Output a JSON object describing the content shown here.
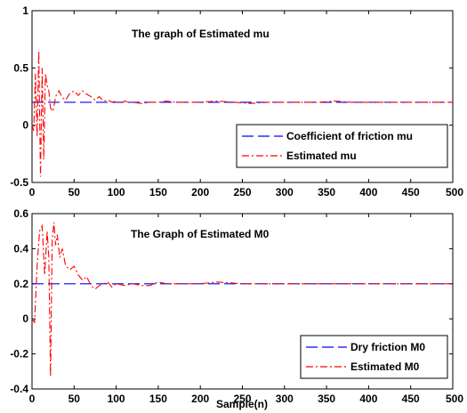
{
  "chart_data": [
    {
      "type": "line",
      "title": "The graph of Estimated mu",
      "xlabel": "",
      "ylabel": "",
      "xlim": [
        0,
        500
      ],
      "ylim": [
        -0.5,
        1
      ],
      "xticks": [
        0,
        50,
        100,
        150,
        200,
        250,
        300,
        350,
        400,
        450,
        500
      ],
      "yticks": [
        -0.5,
        0,
        0.5,
        1
      ],
      "ytick_labels": [
        "-0.5",
        "0",
        "0.5",
        "1"
      ],
      "legend_position": "bottom-right",
      "series": [
        {
          "name": "Coefficient of friction mu",
          "color": "#0000ff",
          "style": "dashed",
          "x": [
            0,
            500
          ],
          "y": [
            0.2,
            0.2
          ]
        },
        {
          "name": "Estimated mu",
          "color": "#ff0000",
          "style": "dashdot",
          "x": [
            0,
            2,
            4,
            6,
            8,
            10,
            12,
            14,
            16,
            18,
            20,
            22,
            25,
            28,
            32,
            36,
            40,
            45,
            50,
            55,
            60,
            65,
            70,
            75,
            80,
            85,
            90,
            95,
            100,
            105,
            110,
            115,
            120,
            130,
            140,
            150,
            160,
            170,
            180,
            200,
            220,
            240,
            260,
            280,
            300,
            320,
            340,
            360,
            380,
            400,
            450,
            500
          ],
          "y": [
            0.0,
            -0.05,
            0.45,
            -0.1,
            0.65,
            -0.45,
            0.5,
            -0.3,
            0.45,
            0.35,
            0.3,
            0.15,
            0.12,
            0.25,
            0.3,
            0.24,
            0.22,
            0.28,
            0.3,
            0.26,
            0.3,
            0.27,
            0.25,
            0.22,
            0.25,
            0.21,
            0.22,
            0.2,
            0.21,
            0.19,
            0.21,
            0.2,
            0.2,
            0.19,
            0.2,
            0.2,
            0.21,
            0.2,
            0.2,
            0.2,
            0.21,
            0.2,
            0.19,
            0.2,
            0.2,
            0.2,
            0.2,
            0.21,
            0.2,
            0.2,
            0.2,
            0.2
          ]
        }
      ]
    },
    {
      "type": "line",
      "title": "The Graph of Estimated M0",
      "xlabel": "Sample(n)",
      "ylabel": "",
      "xlim": [
        0,
        500
      ],
      "ylim": [
        -0.4,
        0.6
      ],
      "xticks": [
        0,
        50,
        100,
        150,
        200,
        250,
        300,
        350,
        400,
        450,
        500
      ],
      "yticks": [
        -0.4,
        -0.2,
        0,
        0.2,
        0.4,
        0.6
      ],
      "ytick_labels": [
        "-0.4",
        "-0.2",
        "0",
        "0.2",
        "0.4",
        "0.6"
      ],
      "legend_position": "bottom-right",
      "series": [
        {
          "name": "Dry friction M0",
          "color": "#0000ff",
          "style": "dashed",
          "x": [
            0,
            500
          ],
          "y": [
            0.2,
            0.2
          ]
        },
        {
          "name": "Estimated M0",
          "color": "#ff0000",
          "style": "dashdot",
          "x": [
            0,
            3,
            6,
            9,
            12,
            15,
            18,
            20,
            22,
            24,
            26,
            28,
            30,
            33,
            36,
            40,
            45,
            50,
            55,
            60,
            65,
            70,
            75,
            80,
            85,
            90,
            95,
            100,
            110,
            120,
            130,
            140,
            150,
            160,
            170,
            180,
            200,
            220,
            250,
            300,
            350,
            400,
            450,
            500
          ],
          "y": [
            0.0,
            -0.02,
            0.3,
            0.5,
            0.53,
            0.25,
            0.5,
            0.35,
            -0.33,
            0.45,
            0.55,
            0.42,
            0.48,
            0.35,
            0.4,
            0.3,
            0.28,
            0.3,
            0.25,
            0.22,
            0.24,
            0.19,
            0.17,
            0.19,
            0.2,
            0.21,
            0.18,
            0.2,
            0.19,
            0.2,
            0.19,
            0.19,
            0.21,
            0.2,
            0.2,
            0.2,
            0.2,
            0.21,
            0.2,
            0.2,
            0.2,
            0.2,
            0.2,
            0.2
          ]
        }
      ]
    }
  ]
}
